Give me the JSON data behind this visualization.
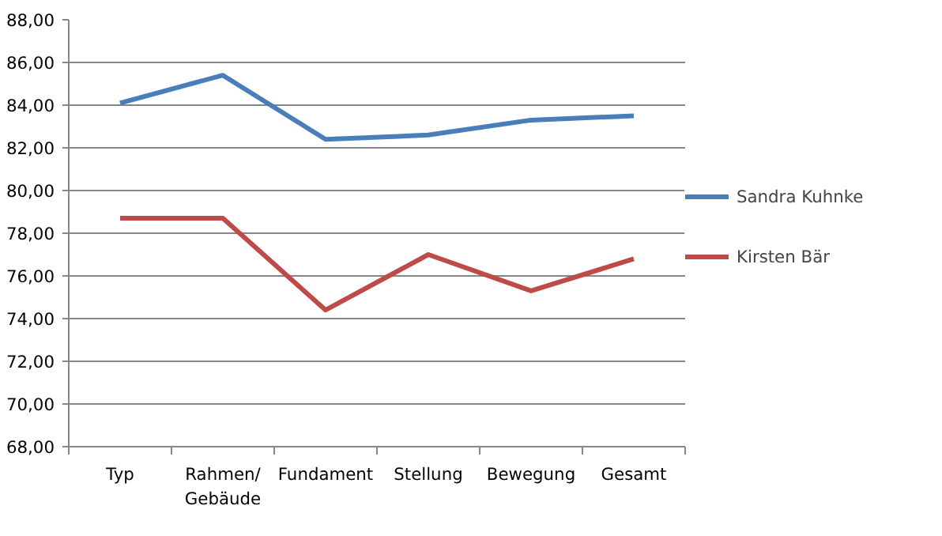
{
  "chart_data": {
    "type": "line",
    "categories": [
      "Typ",
      "Rahmen/ Gebäude",
      "Fundament",
      "Stellung",
      "Bewegung",
      "Gesamt"
    ],
    "series": [
      {
        "name": "Sandra Kuhnke",
        "color": "#4a7ebb",
        "values": [
          84.1,
          85.4,
          82.4,
          82.6,
          83.3,
          83.5
        ]
      },
      {
        "name": "Kirsten Bär",
        "color": "#be4b48",
        "values": [
          78.7,
          78.7,
          74.4,
          77.0,
          75.3,
          76.8
        ]
      }
    ],
    "ylim": [
      68,
      88
    ],
    "yticks": [
      {
        "value": 68,
        "label": "68,00"
      },
      {
        "value": 70,
        "label": "70,00"
      },
      {
        "value": 72,
        "label": "72,00"
      },
      {
        "value": 74,
        "label": "74,00"
      },
      {
        "value": 76,
        "label": "76,00"
      },
      {
        "value": 78,
        "label": "78,00"
      },
      {
        "value": 80,
        "label": "80,00"
      },
      {
        "value": 82,
        "label": "82,00"
      },
      {
        "value": 84,
        "label": "84,00"
      },
      {
        "value": 86,
        "label": "86,00"
      },
      {
        "value": 88,
        "label": "88,00"
      }
    ],
    "grid": "y",
    "legend": "right",
    "marker": "none",
    "line_style": "solid"
  }
}
